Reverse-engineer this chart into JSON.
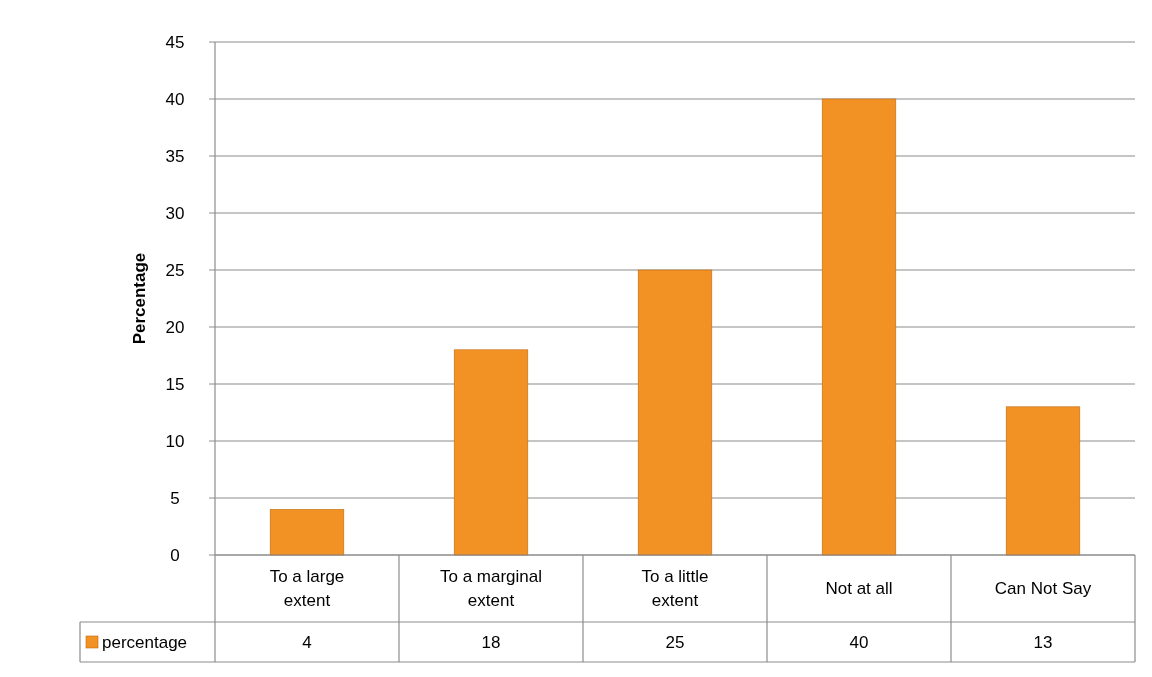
{
  "chart_data": {
    "type": "bar",
    "ylabel": "Percentage",
    "categories": [
      "To a large extent",
      "To a marginal extent",
      "To a little extent",
      "Not at all",
      "Can Not Say"
    ],
    "series": [
      {
        "name": "percentage",
        "color": "#f39224",
        "values": [
          4,
          18,
          25,
          40,
          13
        ]
      }
    ],
    "ylim": [
      0,
      45
    ],
    "yticks": [
      0,
      5,
      10,
      15,
      20,
      25,
      30,
      35,
      40,
      45
    ],
    "grid": "y",
    "legend": "bottom",
    "data_labels": true
  }
}
